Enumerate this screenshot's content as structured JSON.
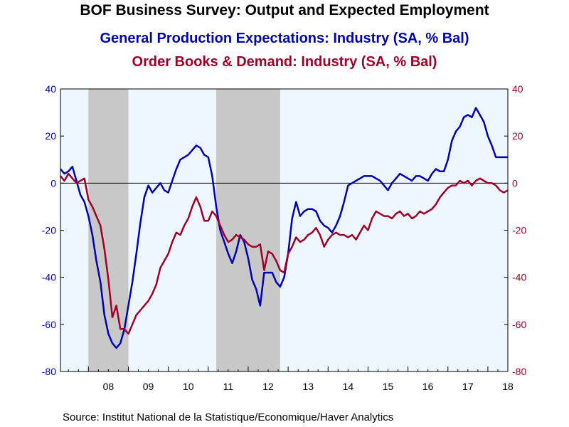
{
  "title": "BOF Business Survey: Output and Expected Employment",
  "source": "Source:  Institut National de la Statistique/Economique/Haver Analytics",
  "colors": {
    "series1": "#0000b4",
    "series2": "#a00028",
    "plot_bg": "#eef6ff",
    "recession": "#c8c8c8"
  },
  "chart_data": {
    "type": "line",
    "x_labels": [
      "08",
      "09",
      "10",
      "11",
      "12",
      "13",
      "14",
      "15",
      "16",
      "17",
      "18"
    ],
    "x_range": [
      2007.3,
      2018.5
    ],
    "ylim": [
      -80,
      40
    ],
    "y_ticks": [
      40,
      20,
      0,
      -20,
      -40,
      -60,
      -80
    ],
    "grid": false,
    "zero_line": true,
    "recession_bands": [
      [
        2008.0,
        2009.0
      ],
      [
        2011.2,
        2012.8
      ]
    ],
    "series": [
      {
        "name": "General Production Expectations: Industry (SA, % Bal)",
        "axis": "left",
        "x": [
          2007.3,
          2007.4,
          2007.5,
          2007.6,
          2007.7,
          2007.8,
          2007.9,
          2008.0,
          2008.1,
          2008.2,
          2008.3,
          2008.4,
          2008.5,
          2008.6,
          2008.7,
          2008.8,
          2008.9,
          2009.0,
          2009.1,
          2009.2,
          2009.3,
          2009.4,
          2009.5,
          2009.6,
          2009.7,
          2009.8,
          2009.9,
          2010.0,
          2010.1,
          2010.2,
          2010.3,
          2010.4,
          2010.5,
          2010.6,
          2010.7,
          2010.8,
          2010.9,
          2011.0,
          2011.1,
          2011.2,
          2011.3,
          2011.4,
          2011.5,
          2011.6,
          2011.7,
          2011.8,
          2011.9,
          2012.0,
          2012.1,
          2012.2,
          2012.3,
          2012.4,
          2012.5,
          2012.6,
          2012.7,
          2012.8,
          2012.9,
          2013.0,
          2013.1,
          2013.2,
          2013.3,
          2013.4,
          2013.5,
          2013.6,
          2013.7,
          2013.8,
          2013.9,
          2014.0,
          2014.1,
          2014.2,
          2014.3,
          2014.4,
          2014.5,
          2014.6,
          2014.7,
          2014.8,
          2014.9,
          2015.0,
          2015.1,
          2015.2,
          2015.3,
          2015.4,
          2015.5,
          2015.6,
          2015.7,
          2015.8,
          2015.9,
          2016.0,
          2016.1,
          2016.2,
          2016.3,
          2016.4,
          2016.5,
          2016.6,
          2016.7,
          2016.8,
          2016.9,
          2017.0,
          2017.1,
          2017.2,
          2017.3,
          2017.4,
          2017.5,
          2017.6,
          2017.7,
          2017.8,
          2017.9,
          2018.0,
          2018.1,
          2018.2,
          2018.3,
          2018.4,
          2018.5
        ],
        "values": [
          6,
          4,
          5,
          7,
          1,
          -5,
          -8,
          -14,
          -22,
          -33,
          -42,
          -56,
          -64,
          -68,
          -70,
          -68,
          -62,
          -52,
          -42,
          -30,
          -17,
          -6,
          -1,
          -4,
          -2,
          0,
          -3,
          -4,
          1,
          6,
          10,
          11,
          12,
          14,
          16,
          15,
          12,
          11,
          3,
          -10,
          -20,
          -25,
          -30,
          -34,
          -29,
          -22,
          -25,
          -32,
          -41,
          -45,
          -52,
          -38,
          -38,
          -38,
          -42,
          -44,
          -40,
          -30,
          -15,
          -8,
          -14,
          -12,
          -11,
          -11,
          -12,
          -16,
          -18,
          -19,
          -21,
          -18,
          -14,
          -8,
          -1,
          0,
          1,
          2,
          3,
          3,
          3,
          2,
          1,
          -1,
          -3,
          0,
          2,
          4,
          3,
          2,
          1,
          3,
          3,
          2,
          1,
          4,
          6,
          5,
          5,
          10,
          18,
          22,
          24,
          28,
          29,
          28,
          32,
          29,
          26,
          20,
          16,
          11,
          11,
          11,
          11
        ]
      },
      {
        "name": "Order Books & Demand: Industry (SA, % Bal)",
        "axis": "right",
        "x": [
          2007.3,
          2007.4,
          2007.5,
          2007.6,
          2007.7,
          2007.8,
          2007.9,
          2008.0,
          2008.1,
          2008.2,
          2008.3,
          2008.4,
          2008.5,
          2008.6,
          2008.7,
          2008.8,
          2008.9,
          2009.0,
          2009.1,
          2009.2,
          2009.3,
          2009.4,
          2009.5,
          2009.6,
          2009.7,
          2009.8,
          2009.9,
          2010.0,
          2010.1,
          2010.2,
          2010.3,
          2010.4,
          2010.5,
          2010.6,
          2010.7,
          2010.8,
          2010.9,
          2011.0,
          2011.1,
          2011.2,
          2011.3,
          2011.4,
          2011.5,
          2011.6,
          2011.7,
          2011.8,
          2011.9,
          2012.0,
          2012.1,
          2012.2,
          2012.3,
          2012.4,
          2012.5,
          2012.6,
          2012.7,
          2012.8,
          2012.9,
          2013.0,
          2013.1,
          2013.2,
          2013.3,
          2013.4,
          2013.5,
          2013.6,
          2013.7,
          2013.8,
          2013.9,
          2014.0,
          2014.1,
          2014.2,
          2014.3,
          2014.4,
          2014.5,
          2014.6,
          2014.7,
          2014.8,
          2014.9,
          2015.0,
          2015.1,
          2015.2,
          2015.3,
          2015.4,
          2015.5,
          2015.6,
          2015.7,
          2015.8,
          2015.9,
          2016.0,
          2016.1,
          2016.2,
          2016.3,
          2016.4,
          2016.5,
          2016.6,
          2016.7,
          2016.8,
          2016.9,
          2017.0,
          2017.1,
          2017.2,
          2017.3,
          2017.4,
          2017.5,
          2017.6,
          2017.7,
          2017.8,
          2017.9,
          2018.0,
          2018.1,
          2018.2,
          2018.3,
          2018.4,
          2018.5
        ],
        "values": [
          3,
          1,
          4,
          2,
          0,
          1,
          2,
          -7,
          -10,
          -14,
          -18,
          -28,
          -41,
          -57,
          -52,
          -62,
          -62,
          -64,
          -60,
          -56,
          -54,
          -52,
          -50,
          -47,
          -43,
          -36,
          -33,
          -30,
          -25,
          -21,
          -22,
          -18,
          -15,
          -10,
          -6,
          -10,
          -16,
          -16,
          -12,
          -14,
          -18,
          -22,
          -25,
          -24,
          -22,
          -23,
          -24,
          -26,
          -27,
          -27,
          -26,
          -37,
          -29,
          -30,
          -33,
          -37,
          -38,
          -30,
          -27,
          -23,
          -25,
          -24,
          -22,
          -21,
          -19,
          -22,
          -27,
          -24,
          -22,
          -21,
          -22,
          -22,
          -23,
          -22,
          -24,
          -21,
          -18,
          -20,
          -15,
          -12,
          -13,
          -14,
          -14,
          -15,
          -13,
          -12,
          -14,
          -13,
          -15,
          -14,
          -12,
          -13,
          -12,
          -11,
          -9,
          -6,
          -4,
          -2,
          -1,
          -1,
          1,
          0,
          1,
          -1,
          1,
          2,
          1,
          0,
          0,
          -1,
          -3,
          -4,
          -3
        ]
      }
    ]
  }
}
